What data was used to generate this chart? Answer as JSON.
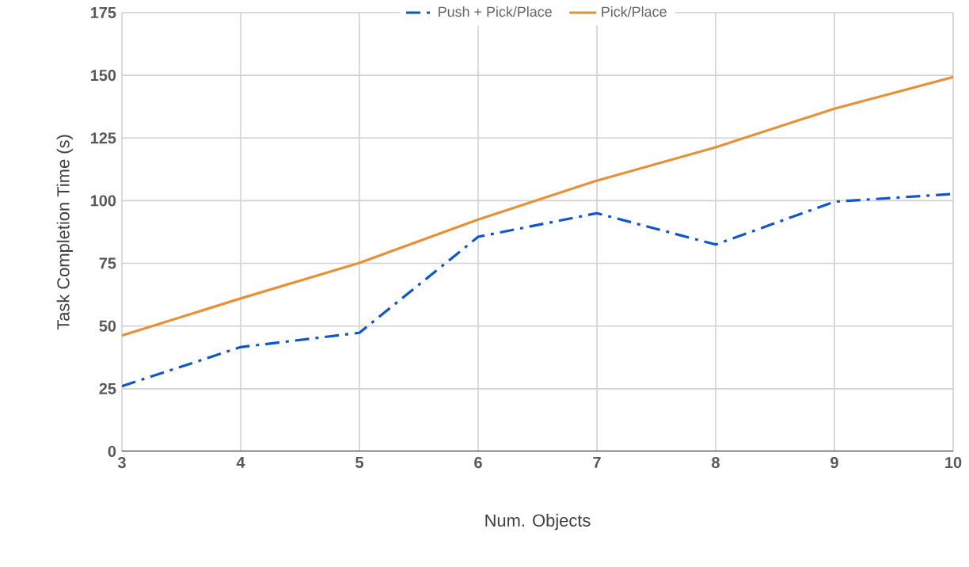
{
  "chart_data": {
    "type": "line",
    "xlabel": "Num. Objects",
    "ylabel": "Task Completion Time (s)",
    "x": [
      3,
      4,
      5,
      6,
      7,
      8,
      9,
      10
    ],
    "series": [
      {
        "name": "Push + Pick/Place",
        "color": "#1155cc",
        "line_style": "dashdot",
        "values": [
          26,
          41.6,
          47.3,
          85.6,
          95,
          82.5,
          99.6,
          102.7
        ]
      },
      {
        "name": "Pick/Place",
        "color": "#e69138",
        "line_style": "solid",
        "values": [
          46.2,
          61,
          75.2,
          92.5,
          108,
          121.3,
          136.7,
          149.3
        ]
      }
    ],
    "xlim": [
      3,
      10
    ],
    "xticks": [
      3,
      4,
      5,
      6,
      7,
      8,
      9,
      10
    ],
    "ylim": [
      0,
      175
    ],
    "yticks": [
      0,
      25,
      50,
      75,
      100,
      125,
      150,
      175
    ],
    "grid": true,
    "legend": "top",
    "marker": "none"
  }
}
